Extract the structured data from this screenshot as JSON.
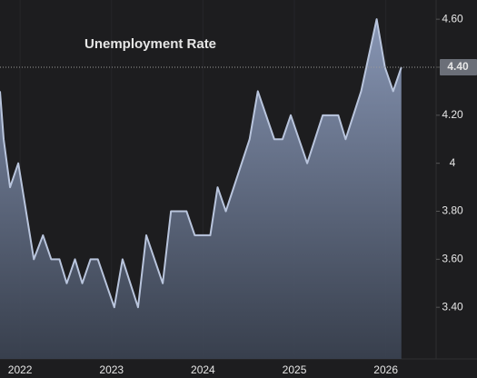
{
  "chart_data": {
    "type": "area",
    "title": "Unemployment Rate",
    "x": [
      2021.78,
      2021.82,
      2021.89,
      2021.98,
      2022.15,
      2022.25,
      2022.34,
      2022.43,
      2022.51,
      2022.6,
      2022.68,
      2022.77,
      2022.85,
      2023.03,
      2023.12,
      2023.29,
      2023.38,
      2023.56,
      2023.65,
      2023.82,
      2023.91,
      2024.08,
      2024.16,
      2024.25,
      2024.51,
      2024.6,
      2024.78,
      2024.87,
      2024.96,
      2025.14,
      2025.31,
      2025.48,
      2025.56,
      2025.73,
      2025.9,
      2025.99,
      2026.08,
      2026.17
    ],
    "values": [
      4.3,
      4.1,
      3.9,
      4.0,
      3.6,
      3.7,
      3.6,
      3.6,
      3.5,
      3.6,
      3.5,
      3.6,
      3.6,
      3.4,
      3.6,
      3.4,
      3.7,
      3.5,
      3.8,
      3.8,
      3.7,
      3.7,
      3.9,
      3.8,
      4.1,
      4.3,
      4.1,
      4.1,
      4.2,
      4.0,
      4.2,
      4.2,
      4.1,
      4.3,
      4.6,
      4.4,
      4.3,
      4.4
    ],
    "current_value_label": "4.40",
    "color": "#b9c5dd",
    "xlim": [
      2021.78,
      2026.55
    ],
    "xticks": [
      2022,
      2023,
      2024,
      2025,
      2026
    ],
    "ylim": [
      3.185,
      4.68
    ],
    "yticks": [
      {
        "value": 3.4,
        "label": "3.40"
      },
      {
        "value": 3.6,
        "label": "3.60"
      },
      {
        "value": 3.8,
        "label": "3.80"
      },
      4,
      {
        "value": 4.2,
        "label": "4.20"
      },
      {
        "value": 4.4,
        "label": "4.40"
      },
      {
        "value": 4.6,
        "label": "4.60"
      }
    ],
    "grid": true
  }
}
